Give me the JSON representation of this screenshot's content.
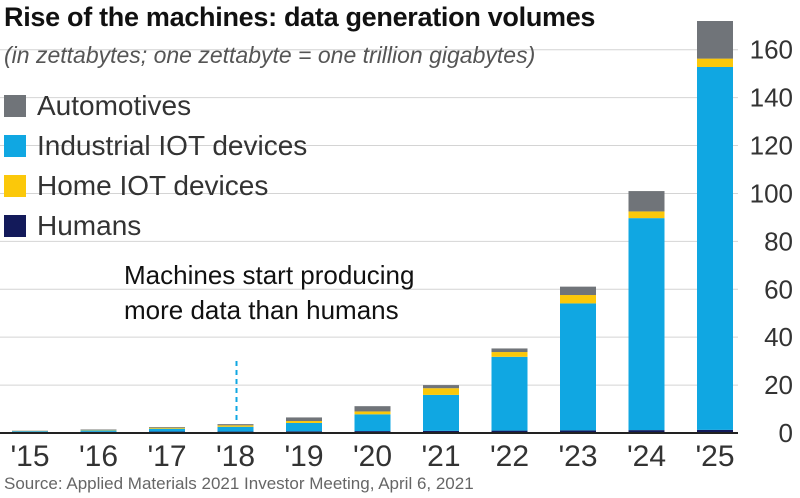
{
  "header": {
    "title": "Rise of the machines: data generation volumes",
    "subtitle": "(in zettabytes; one zettabyte = one trillion gigabytes)"
  },
  "legend": {
    "items": [
      {
        "label": "Automotives",
        "color": "#707479"
      },
      {
        "label": "Industrial IOT devices",
        "color": "#10a7e2"
      },
      {
        "label": "Home IOT devices",
        "color": "#fbc80a"
      },
      {
        "label": "Humans",
        "color": "#131a5a"
      }
    ]
  },
  "annotation": {
    "line1": "Machines start producing",
    "line2": "more data than humans"
  },
  "source": "Source: Applied Materials 2021 Investor Meeting, April 6, 2021",
  "chart_data": {
    "type": "bar",
    "stacked": true,
    "categories": [
      "'15",
      "'16",
      "'17",
      "'18",
      "'19",
      "'20",
      "'21",
      "'22",
      "'23",
      "'24",
      "'25"
    ],
    "series": [
      {
        "name": "Humans",
        "color": "#131a5a",
        "values": [
          0.5,
          0.5,
          0.6,
          0.6,
          0.7,
          0.8,
          0.9,
          1.0,
          1.1,
          1.2,
          1.3
        ]
      },
      {
        "name": "Industrial IOT devices",
        "color": "#10a7e2",
        "values": [
          0.3,
          0.6,
          1.2,
          2.0,
          3.5,
          7.0,
          15.0,
          30.8,
          53.0,
          88.5,
          151.5
        ]
      },
      {
        "name": "Home IOT devices",
        "color": "#fbc80a",
        "values": [
          0.1,
          0.2,
          0.4,
          0.6,
          0.8,
          1.2,
          2.8,
          2.0,
          3.5,
          2.8,
          3.5
        ]
      },
      {
        "name": "Automotives",
        "color": "#707479",
        "values": [
          0.1,
          0.2,
          0.3,
          0.5,
          1.5,
          2.2,
          1.3,
          1.5,
          3.5,
          8.5,
          15.7
        ]
      }
    ],
    "yticks": [
      0,
      20,
      40,
      60,
      80,
      100,
      120,
      140,
      160
    ],
    "ylim": [
      0,
      172
    ],
    "grid": true,
    "yaxis_position": "right",
    "marker_category": "'18",
    "legend_position": "top-left"
  }
}
